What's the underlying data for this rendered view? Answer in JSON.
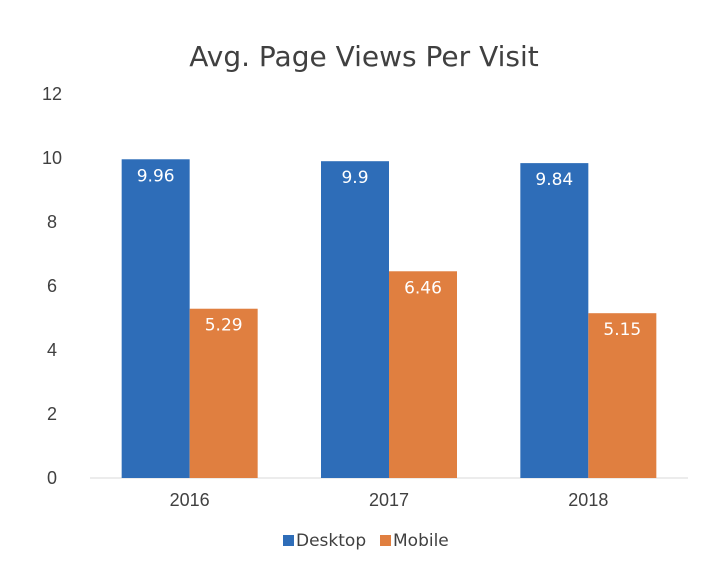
{
  "chart_data": {
    "type": "bar",
    "title": "Avg. Page Views Per Visit",
    "categories": [
      "2016",
      "2017",
      "2018"
    ],
    "series": [
      {
        "name": "Desktop",
        "values": [
          9.96,
          9.9,
          9.84
        ],
        "labels": [
          "9.96",
          "9.9",
          "9.84"
        ],
        "color": "#2E6DB8"
      },
      {
        "name": "Mobile",
        "values": [
          5.29,
          6.46,
          5.15
        ],
        "labels": [
          "5.29",
          "6.46",
          "5.15"
        ],
        "color": "#E07F40"
      }
    ],
    "ylim": [
      0,
      12
    ],
    "yticks": [
      "0",
      "2",
      "4",
      "6",
      "8",
      "10",
      "12"
    ],
    "grid": false,
    "legend_position": "bottom",
    "label_color": "#ffffff"
  }
}
